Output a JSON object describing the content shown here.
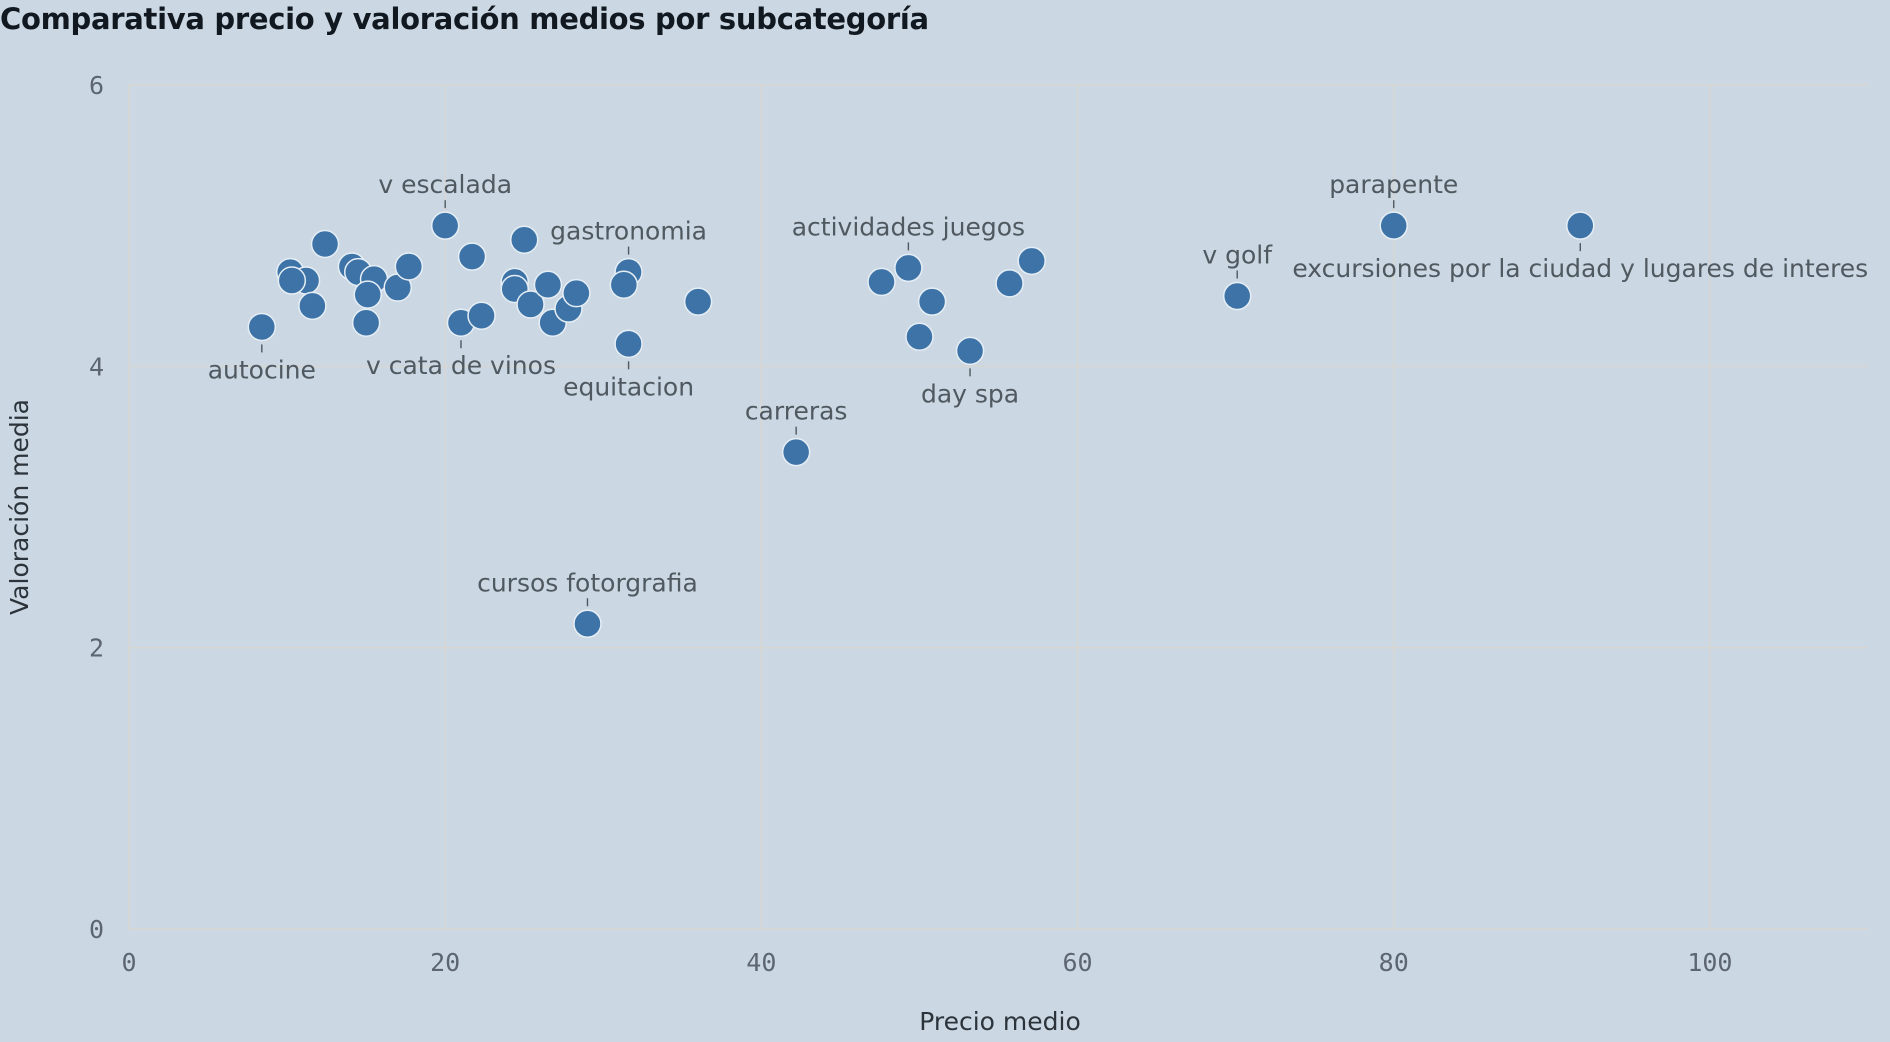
{
  "title": "Comparativa precio y valoración medios por subcategoría",
  "chart_data": {
    "type": "scatter",
    "title": "Comparativa precio y valoración medios por subcategoría",
    "xlabel": "Precio medio",
    "ylabel": "Valoración media",
    "xlim": [
      0,
      110
    ],
    "ylim": [
      0,
      6
    ],
    "xticks": [
      0,
      20,
      40,
      60,
      80,
      100
    ],
    "yticks": [
      0,
      2,
      4,
      6
    ],
    "grid": true,
    "color": "#3d73a7",
    "points": [
      {
        "x": 8.4,
        "y": 4.28,
        "label": "autocine",
        "label_pos": "below"
      },
      {
        "x": 10.2,
        "y": 4.67,
        "label": ""
      },
      {
        "x": 11.2,
        "y": 4.61,
        "label": ""
      },
      {
        "x": 10.3,
        "y": 4.61,
        "label": ""
      },
      {
        "x": 11.6,
        "y": 4.43,
        "label": ""
      },
      {
        "x": 12.4,
        "y": 4.87,
        "label": ""
      },
      {
        "x": 14.1,
        "y": 4.71,
        "label": ""
      },
      {
        "x": 14.5,
        "y": 4.67,
        "label": ""
      },
      {
        "x": 15.5,
        "y": 4.62,
        "label": ""
      },
      {
        "x": 15.1,
        "y": 4.51,
        "label": ""
      },
      {
        "x": 15.0,
        "y": 4.31,
        "label": ""
      },
      {
        "x": 17.0,
        "y": 4.56,
        "label": ""
      },
      {
        "x": 17.7,
        "y": 4.71,
        "label": ""
      },
      {
        "x": 20.0,
        "y": 5.0,
        "label": "v escalada",
        "label_pos": "above"
      },
      {
        "x": 21.7,
        "y": 4.78,
        "label": ""
      },
      {
        "x": 21.0,
        "y": 4.31,
        "label": "v cata de vinos",
        "label_pos": "below"
      },
      {
        "x": 22.3,
        "y": 4.36,
        "label": ""
      },
      {
        "x": 24.4,
        "y": 4.6,
        "label": ""
      },
      {
        "x": 24.4,
        "y": 4.55,
        "label": ""
      },
      {
        "x": 25.0,
        "y": 4.9,
        "label": ""
      },
      {
        "x": 25.4,
        "y": 4.44,
        "label": ""
      },
      {
        "x": 26.5,
        "y": 4.58,
        "label": ""
      },
      {
        "x": 26.8,
        "y": 4.31,
        "label": ""
      },
      {
        "x": 27.8,
        "y": 4.41,
        "label": ""
      },
      {
        "x": 28.3,
        "y": 4.52,
        "label": ""
      },
      {
        "x": 29.0,
        "y": 2.17,
        "label": "cursos fotorgrafia",
        "label_pos": "above"
      },
      {
        "x": 31.6,
        "y": 4.67,
        "label": "gastronomia",
        "label_pos": "above"
      },
      {
        "x": 31.3,
        "y": 4.58,
        "label": ""
      },
      {
        "x": 31.6,
        "y": 4.16,
        "label": "equitacion",
        "label_pos": "below"
      },
      {
        "x": 36.0,
        "y": 4.46,
        "label": ""
      },
      {
        "x": 42.2,
        "y": 3.39,
        "label": "carreras",
        "label_pos": "above"
      },
      {
        "x": 47.6,
        "y": 4.6,
        "label": ""
      },
      {
        "x": 49.3,
        "y": 4.7,
        "label": "actividades juegos",
        "label_pos": "above"
      },
      {
        "x": 50.0,
        "y": 4.21,
        "label": ""
      },
      {
        "x": 50.8,
        "y": 4.46,
        "label": ""
      },
      {
        "x": 53.2,
        "y": 4.11,
        "label": "day spa",
        "label_pos": "below"
      },
      {
        "x": 55.7,
        "y": 4.59,
        "label": ""
      },
      {
        "x": 57.1,
        "y": 4.75,
        "label": ""
      },
      {
        "x": 70.1,
        "y": 4.5,
        "label": "v golf",
        "label_pos": "above"
      },
      {
        "x": 80.0,
        "y": 5.0,
        "label": "parapente",
        "label_pos": "above"
      },
      {
        "x": 91.8,
        "y": 5.0,
        "label": "excursiones por la ciudad y lugares de interes",
        "label_pos": "below"
      }
    ]
  }
}
